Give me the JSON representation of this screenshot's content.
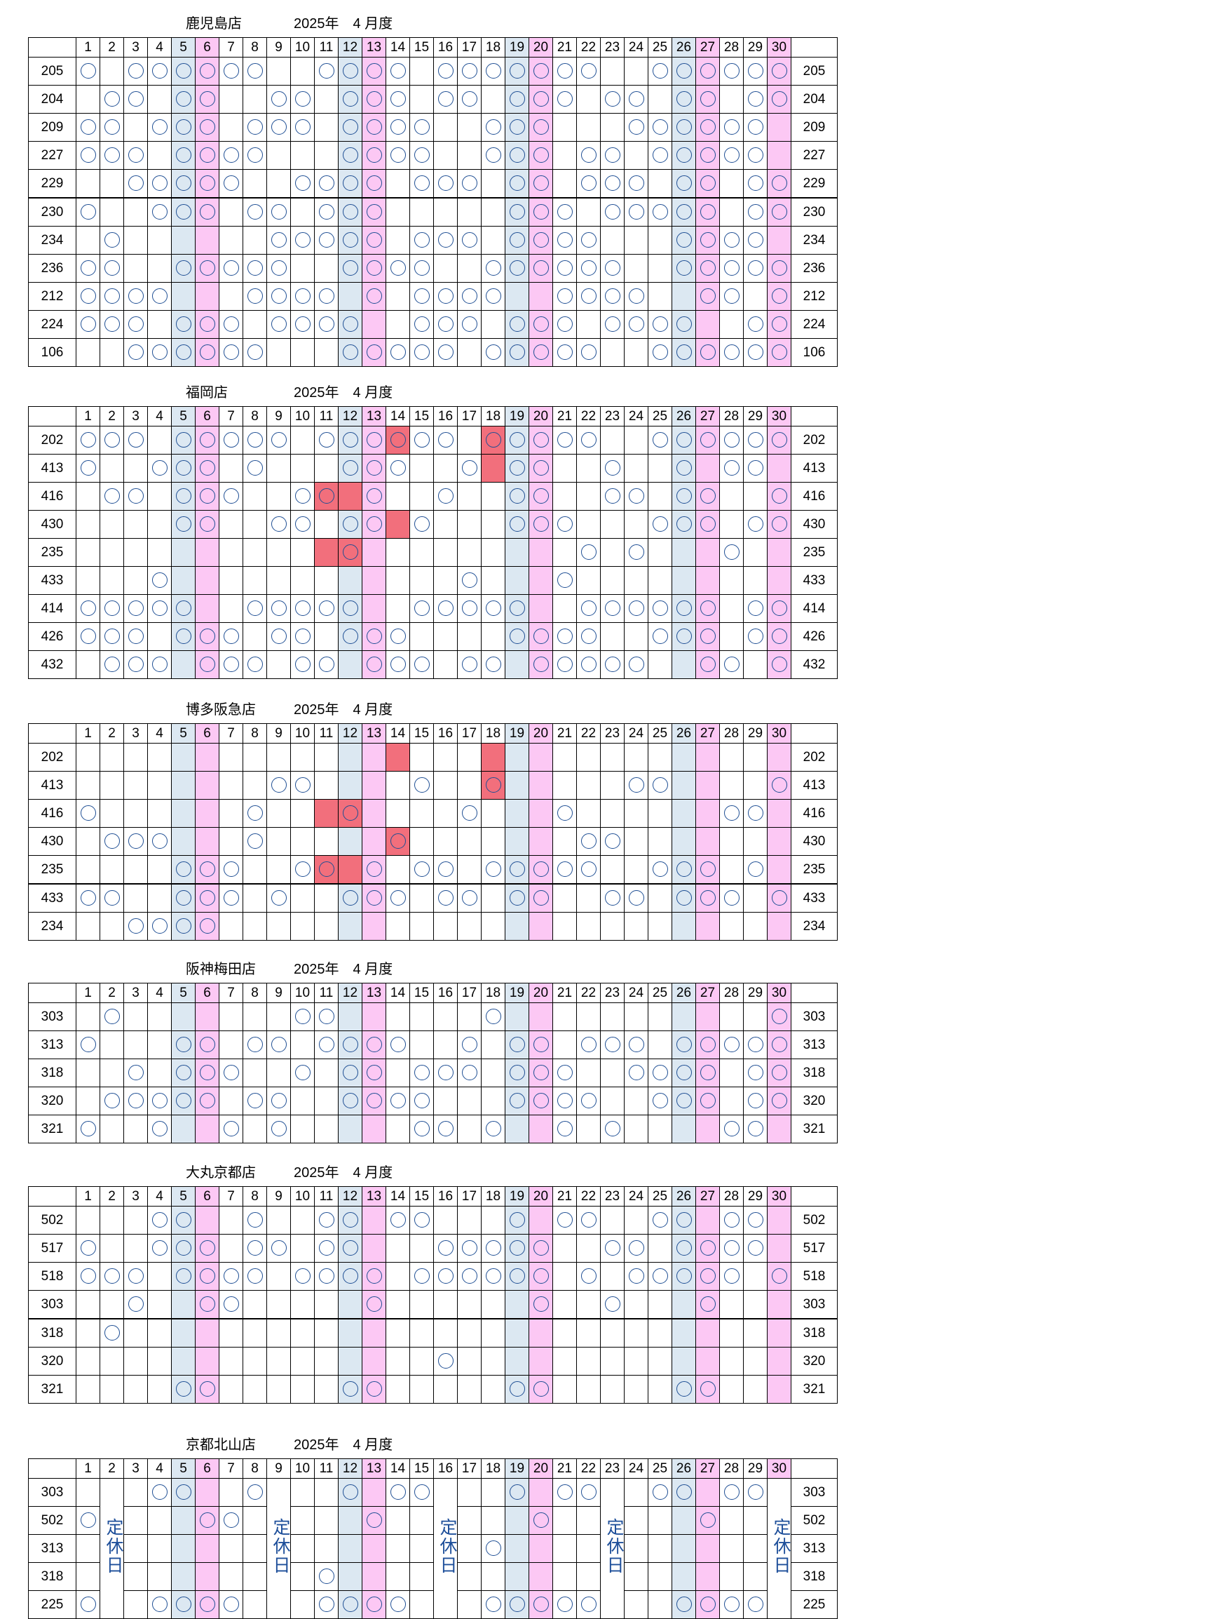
{
  "month_label": "2025年　4 月度",
  "day_headers": [
    "1",
    "2",
    "3",
    "4",
    "5",
    "6",
    "7",
    "8",
    "9",
    "10",
    "11",
    "12",
    "13",
    "14",
    "15",
    "16",
    "17",
    "18",
    "19",
    "20",
    "21",
    "22",
    "23",
    "24",
    "25",
    "26",
    "27",
    "28",
    "29",
    "30"
  ],
  "saturday_days": [
    5,
    12,
    19,
    26
  ],
  "sunday_days": [
    6,
    13,
    20,
    27,
    30
  ],
  "mark_symbol": "circle",
  "colors": {
    "saturday": "#dce8f2",
    "sunday": "#fcc8f4",
    "highlight": "#f26f7c",
    "mark": "#1f4f94"
  },
  "closed_label": "定休日",
  "sections": [
    {
      "store": "鹿児島店",
      "group_breaks": [
        5
      ],
      "rows": [
        {
          "id": "205",
          "marks": [
            1,
            3,
            4,
            5,
            6,
            7,
            8,
            11,
            12,
            13,
            14,
            16,
            17,
            18,
            19,
            20,
            21,
            22,
            25,
            26,
            27,
            28,
            29,
            30
          ]
        },
        {
          "id": "204",
          "marks": [
            2,
            3,
            5,
            6,
            9,
            10,
            12,
            13,
            14,
            16,
            17,
            19,
            20,
            21,
            23,
            24,
            26,
            27,
            29,
            30
          ]
        },
        {
          "id": "209",
          "marks": [
            1,
            2,
            4,
            5,
            6,
            8,
            9,
            10,
            12,
            13,
            14,
            15,
            18,
            19,
            20,
            24,
            25,
            26,
            27,
            28,
            29
          ]
        },
        {
          "id": "227",
          "marks": [
            1,
            2,
            3,
            5,
            6,
            7,
            8,
            12,
            13,
            14,
            15,
            18,
            19,
            20,
            22,
            23,
            25,
            26,
            27,
            28,
            29
          ]
        },
        {
          "id": "229",
          "marks": [
            3,
            4,
            5,
            6,
            7,
            10,
            11,
            12,
            13,
            15,
            16,
            17,
            19,
            20,
            22,
            23,
            24,
            26,
            27,
            29,
            30
          ]
        },
        {
          "id": "230",
          "marks": [
            1,
            4,
            5,
            6,
            8,
            9,
            11,
            12,
            13,
            19,
            20,
            21,
            23,
            24,
            25,
            26,
            27,
            29,
            30
          ]
        },
        {
          "id": "234",
          "marks": [
            2,
            9,
            10,
            11,
            12,
            13,
            15,
            16,
            17,
            19,
            20,
            21,
            22,
            26,
            27,
            28,
            29
          ]
        },
        {
          "id": "236",
          "marks": [
            1,
            2,
            5,
            6,
            7,
            8,
            9,
            12,
            13,
            14,
            15,
            18,
            19,
            20,
            21,
            22,
            23,
            26,
            27,
            28,
            29,
            30
          ]
        },
        {
          "id": "212",
          "marks": [
            1,
            2,
            3,
            4,
            8,
            9,
            10,
            11,
            13,
            15,
            16,
            17,
            18,
            21,
            22,
            23,
            24,
            27,
            28,
            30
          ]
        },
        {
          "id": "224",
          "marks": [
            1,
            2,
            3,
            5,
            6,
            7,
            9,
            10,
            11,
            12,
            15,
            16,
            17,
            19,
            20,
            21,
            23,
            24,
            25,
            26,
            29,
            30
          ]
        },
        {
          "id": "106",
          "marks": [
            3,
            4,
            5,
            6,
            7,
            8,
            12,
            13,
            14,
            15,
            16,
            18,
            19,
            20,
            21,
            22,
            25,
            26,
            27,
            28,
            29,
            30
          ]
        }
      ],
      "highlights": []
    },
    {
      "store": "福岡店",
      "group_breaks": [],
      "rows": [
        {
          "id": "202",
          "marks": [
            1,
            2,
            3,
            5,
            6,
            7,
            8,
            9,
            11,
            12,
            13,
            14,
            15,
            16,
            18,
            19,
            20,
            21,
            22,
            25,
            26,
            27,
            28,
            29,
            30
          ]
        },
        {
          "id": "413",
          "marks": [
            1,
            4,
            5,
            6,
            8,
            12,
            13,
            14,
            17,
            19,
            20,
            23,
            26,
            28,
            29
          ]
        },
        {
          "id": "416",
          "marks": [
            2,
            3,
            5,
            6,
            7,
            10,
            11,
            13,
            16,
            19,
            20,
            23,
            24,
            26,
            27,
            30
          ]
        },
        {
          "id": "430",
          "marks": [
            5,
            6,
            9,
            10,
            12,
            13,
            15,
            19,
            20,
            21,
            25,
            26,
            27,
            29,
            30
          ]
        },
        {
          "id": "235",
          "marks": [
            12,
            22,
            24,
            28
          ]
        },
        {
          "id": "433",
          "marks": [
            4,
            17,
            21
          ]
        },
        {
          "id": "414",
          "marks": [
            1,
            2,
            3,
            4,
            5,
            8,
            9,
            10,
            11,
            12,
            15,
            16,
            17,
            18,
            19,
            22,
            23,
            24,
            25,
            26,
            27,
            29,
            30
          ]
        },
        {
          "id": "426",
          "marks": [
            1,
            2,
            3,
            5,
            6,
            7,
            9,
            10,
            12,
            13,
            14,
            19,
            20,
            21,
            22,
            25,
            26,
            27,
            29,
            30
          ]
        },
        {
          "id": "432",
          "marks": [
            2,
            3,
            4,
            6,
            7,
            8,
            10,
            11,
            13,
            14,
            15,
            17,
            18,
            20,
            21,
            22,
            23,
            24,
            27,
            28,
            30
          ]
        }
      ],
      "highlights": [
        {
          "row": 0,
          "day": 14
        },
        {
          "row": 0,
          "day": 18
        },
        {
          "row": 1,
          "day": 18
        },
        {
          "row": 2,
          "day": 11
        },
        {
          "row": 2,
          "day": 12
        },
        {
          "row": 3,
          "day": 14
        },
        {
          "row": 4,
          "day": 11
        },
        {
          "row": 4,
          "day": 12
        }
      ]
    },
    {
      "store": "博多阪急店",
      "group_breaks": [
        5
      ],
      "rows": [
        {
          "id": "202",
          "marks": []
        },
        {
          "id": "413",
          "marks": [
            9,
            10,
            15,
            18,
            24,
            25,
            30
          ]
        },
        {
          "id": "416",
          "marks": [
            1,
            8,
            12,
            17,
            21,
            28,
            29
          ]
        },
        {
          "id": "430",
          "marks": [
            2,
            3,
            4,
            8,
            14,
            22,
            23
          ]
        },
        {
          "id": "235",
          "marks": [
            5,
            6,
            7,
            10,
            11,
            13,
            15,
            16,
            18,
            19,
            20,
            21,
            22,
            25,
            26,
            27,
            29
          ]
        },
        {
          "id": "433",
          "marks": [
            1,
            2,
            5,
            6,
            7,
            9,
            12,
            13,
            14,
            16,
            17,
            19,
            20,
            23,
            24,
            26,
            27,
            28,
            30
          ]
        },
        {
          "id": "234",
          "marks": [
            3,
            4,
            5,
            6
          ]
        }
      ],
      "highlights": [
        {
          "row": 0,
          "day": 14
        },
        {
          "row": 0,
          "day": 18
        },
        {
          "row": 1,
          "day": 18
        },
        {
          "row": 2,
          "day": 11
        },
        {
          "row": 2,
          "day": 12
        },
        {
          "row": 3,
          "day": 14
        },
        {
          "row": 4,
          "day": 11
        },
        {
          "row": 4,
          "day": 12
        }
      ]
    },
    {
      "store": "阪神梅田店",
      "group_breaks": [],
      "rows": [
        {
          "id": "303",
          "marks": [
            2,
            10,
            11,
            18,
            30
          ]
        },
        {
          "id": "313",
          "marks": [
            1,
            5,
            6,
            8,
            9,
            11,
            12,
            13,
            14,
            17,
            19,
            20,
            22,
            23,
            24,
            26,
            27,
            28,
            29,
            30
          ]
        },
        {
          "id": "318",
          "marks": [
            3,
            5,
            6,
            7,
            10,
            12,
            13,
            15,
            16,
            17,
            19,
            20,
            21,
            24,
            25,
            26,
            27,
            29,
            30
          ]
        },
        {
          "id": "320",
          "marks": [
            2,
            3,
            4,
            5,
            6,
            8,
            9,
            12,
            13,
            14,
            15,
            19,
            20,
            21,
            22,
            25,
            26,
            27,
            29,
            30
          ]
        },
        {
          "id": "321",
          "marks": [
            1,
            4,
            7,
            9,
            15,
            16,
            18,
            21,
            23,
            28,
            29
          ]
        }
      ],
      "highlights": []
    },
    {
      "store": "大丸京都店",
      "group_breaks": [
        4
      ],
      "rows": [
        {
          "id": "502",
          "marks": [
            4,
            5,
            8,
            11,
            12,
            14,
            15,
            19,
            21,
            22,
            25,
            26,
            28,
            29
          ]
        },
        {
          "id": "517",
          "marks": [
            1,
            4,
            5,
            6,
            8,
            9,
            11,
            12,
            16,
            17,
            18,
            19,
            20,
            23,
            24,
            26,
            27,
            28,
            29
          ]
        },
        {
          "id": "518",
          "marks": [
            1,
            2,
            3,
            5,
            6,
            7,
            8,
            10,
            11,
            12,
            13,
            15,
            16,
            17,
            18,
            19,
            20,
            22,
            24,
            25,
            26,
            27,
            28,
            30
          ]
        },
        {
          "id": "303",
          "marks": [
            3,
            6,
            7,
            13,
            20,
            23,
            27
          ]
        },
        {
          "id": "318",
          "marks": [
            2
          ]
        },
        {
          "id": "320",
          "marks": [
            16
          ]
        },
        {
          "id": "321",
          "marks": [
            5,
            6,
            12,
            13,
            19,
            20,
            26,
            27
          ]
        }
      ],
      "highlights": []
    },
    {
      "store": "京都北山店",
      "group_breaks": [],
      "closed_days": [
        2,
        9,
        16,
        23,
        30
      ],
      "rows": [
        {
          "id": "303",
          "marks": [
            4,
            5,
            8,
            12,
            14,
            15,
            19,
            21,
            22,
            25,
            26,
            28,
            29
          ]
        },
        {
          "id": "502",
          "marks": [
            1,
            6,
            7,
            13,
            20,
            27
          ]
        },
        {
          "id": "313",
          "marks": [
            18
          ]
        },
        {
          "id": "318",
          "marks": [
            11
          ]
        },
        {
          "id": "225",
          "marks": [
            1,
            4,
            5,
            6,
            7,
            11,
            12,
            13,
            14,
            18,
            19,
            20,
            21,
            22,
            26,
            27,
            28,
            29
          ]
        }
      ],
      "highlights": []
    }
  ]
}
